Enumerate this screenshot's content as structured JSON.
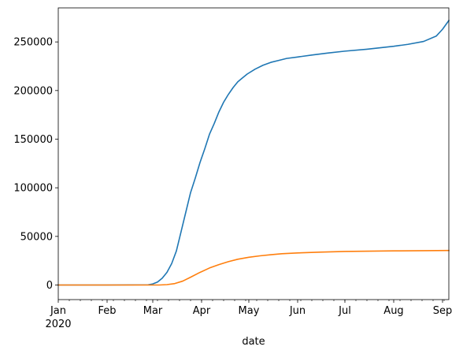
{
  "chart_data": {
    "type": "line",
    "title": "",
    "xlabel": "date",
    "ylabel": "",
    "x_axis_type": "date",
    "xlim": [
      "2020-01-01",
      "2020-09-05"
    ],
    "ylim": [
      -15000,
      285000
    ],
    "grid": false,
    "legend": "none",
    "x_ticks": [
      {
        "date": "2020-01-01",
        "label": "Jan",
        "sublabel": "2020"
      },
      {
        "date": "2020-02-01",
        "label": "Feb",
        "sublabel": ""
      },
      {
        "date": "2020-03-01",
        "label": "Mar",
        "sublabel": ""
      },
      {
        "date": "2020-04-01",
        "label": "Apr",
        "sublabel": ""
      },
      {
        "date": "2020-05-01",
        "label": "May",
        "sublabel": ""
      },
      {
        "date": "2020-06-01",
        "label": "Jun",
        "sublabel": ""
      },
      {
        "date": "2020-07-01",
        "label": "Jul",
        "sublabel": ""
      },
      {
        "date": "2020-08-01",
        "label": "Aug",
        "sublabel": ""
      },
      {
        "date": "2020-09-01",
        "label": "Sep",
        "sublabel": ""
      }
    ],
    "y_ticks": [
      {
        "value": 0,
        "label": "0"
      },
      {
        "value": 50000,
        "label": "50000"
      },
      {
        "value": 100000,
        "label": "100000"
      },
      {
        "value": 150000,
        "label": "150000"
      },
      {
        "value": 200000,
        "label": "200000"
      },
      {
        "value": 250000,
        "label": "250000"
      }
    ],
    "series": [
      {
        "color": "#1f77b4",
        "points": [
          [
            "2020-01-01",
            0
          ],
          [
            "2020-02-01",
            0
          ],
          [
            "2020-02-27",
            200
          ],
          [
            "2020-03-01",
            1100
          ],
          [
            "2020-03-04",
            3000
          ],
          [
            "2020-03-07",
            7000
          ],
          [
            "2020-03-10",
            13000
          ],
          [
            "2020-03-13",
            22000
          ],
          [
            "2020-03-16",
            35000
          ],
          [
            "2020-03-19",
            55000
          ],
          [
            "2020-03-22",
            75000
          ],
          [
            "2020-03-25",
            95000
          ],
          [
            "2020-03-28",
            110000
          ],
          [
            "2020-03-31",
            126000
          ],
          [
            "2020-04-03",
            140000
          ],
          [
            "2020-04-06",
            155000
          ],
          [
            "2020-04-09",
            166000
          ],
          [
            "2020-04-12",
            178000
          ],
          [
            "2020-04-15",
            188000
          ],
          [
            "2020-04-18",
            196000
          ],
          [
            "2020-04-21",
            203000
          ],
          [
            "2020-04-24",
            209000
          ],
          [
            "2020-04-27",
            213000
          ],
          [
            "2020-04-30",
            217000
          ],
          [
            "2020-05-05",
            222000
          ],
          [
            "2020-05-10",
            226000
          ],
          [
            "2020-05-15",
            229000
          ],
          [
            "2020-05-20",
            231000
          ],
          [
            "2020-05-25",
            233000
          ],
          [
            "2020-06-01",
            234500
          ],
          [
            "2020-06-10",
            236500
          ],
          [
            "2020-06-20",
            238500
          ],
          [
            "2020-07-01",
            240500
          ],
          [
            "2020-07-15",
            242500
          ],
          [
            "2020-08-01",
            245500
          ],
          [
            "2020-08-10",
            247500
          ],
          [
            "2020-08-20",
            250500
          ],
          [
            "2020-08-28",
            256000
          ],
          [
            "2020-09-01",
            263000
          ],
          [
            "2020-09-05",
            272000
          ]
        ]
      },
      {
        "color": "#ff7f0e",
        "points": [
          [
            "2020-01-01",
            0
          ],
          [
            "2020-03-05",
            0
          ],
          [
            "2020-03-10",
            400
          ],
          [
            "2020-03-15",
            1500
          ],
          [
            "2020-03-20",
            4000
          ],
          [
            "2020-03-25",
            8000
          ],
          [
            "2020-03-31",
            13000
          ],
          [
            "2020-04-06",
            17500
          ],
          [
            "2020-04-12",
            21000
          ],
          [
            "2020-04-18",
            24000
          ],
          [
            "2020-04-24",
            26500
          ],
          [
            "2020-05-01",
            28500
          ],
          [
            "2020-05-08",
            30000
          ],
          [
            "2020-05-15",
            31200
          ],
          [
            "2020-05-22",
            32200
          ],
          [
            "2020-06-01",
            33000
          ],
          [
            "2020-06-15",
            33800
          ],
          [
            "2020-07-01",
            34500
          ],
          [
            "2020-08-01",
            35100
          ],
          [
            "2020-09-05",
            35500
          ]
        ]
      }
    ]
  }
}
